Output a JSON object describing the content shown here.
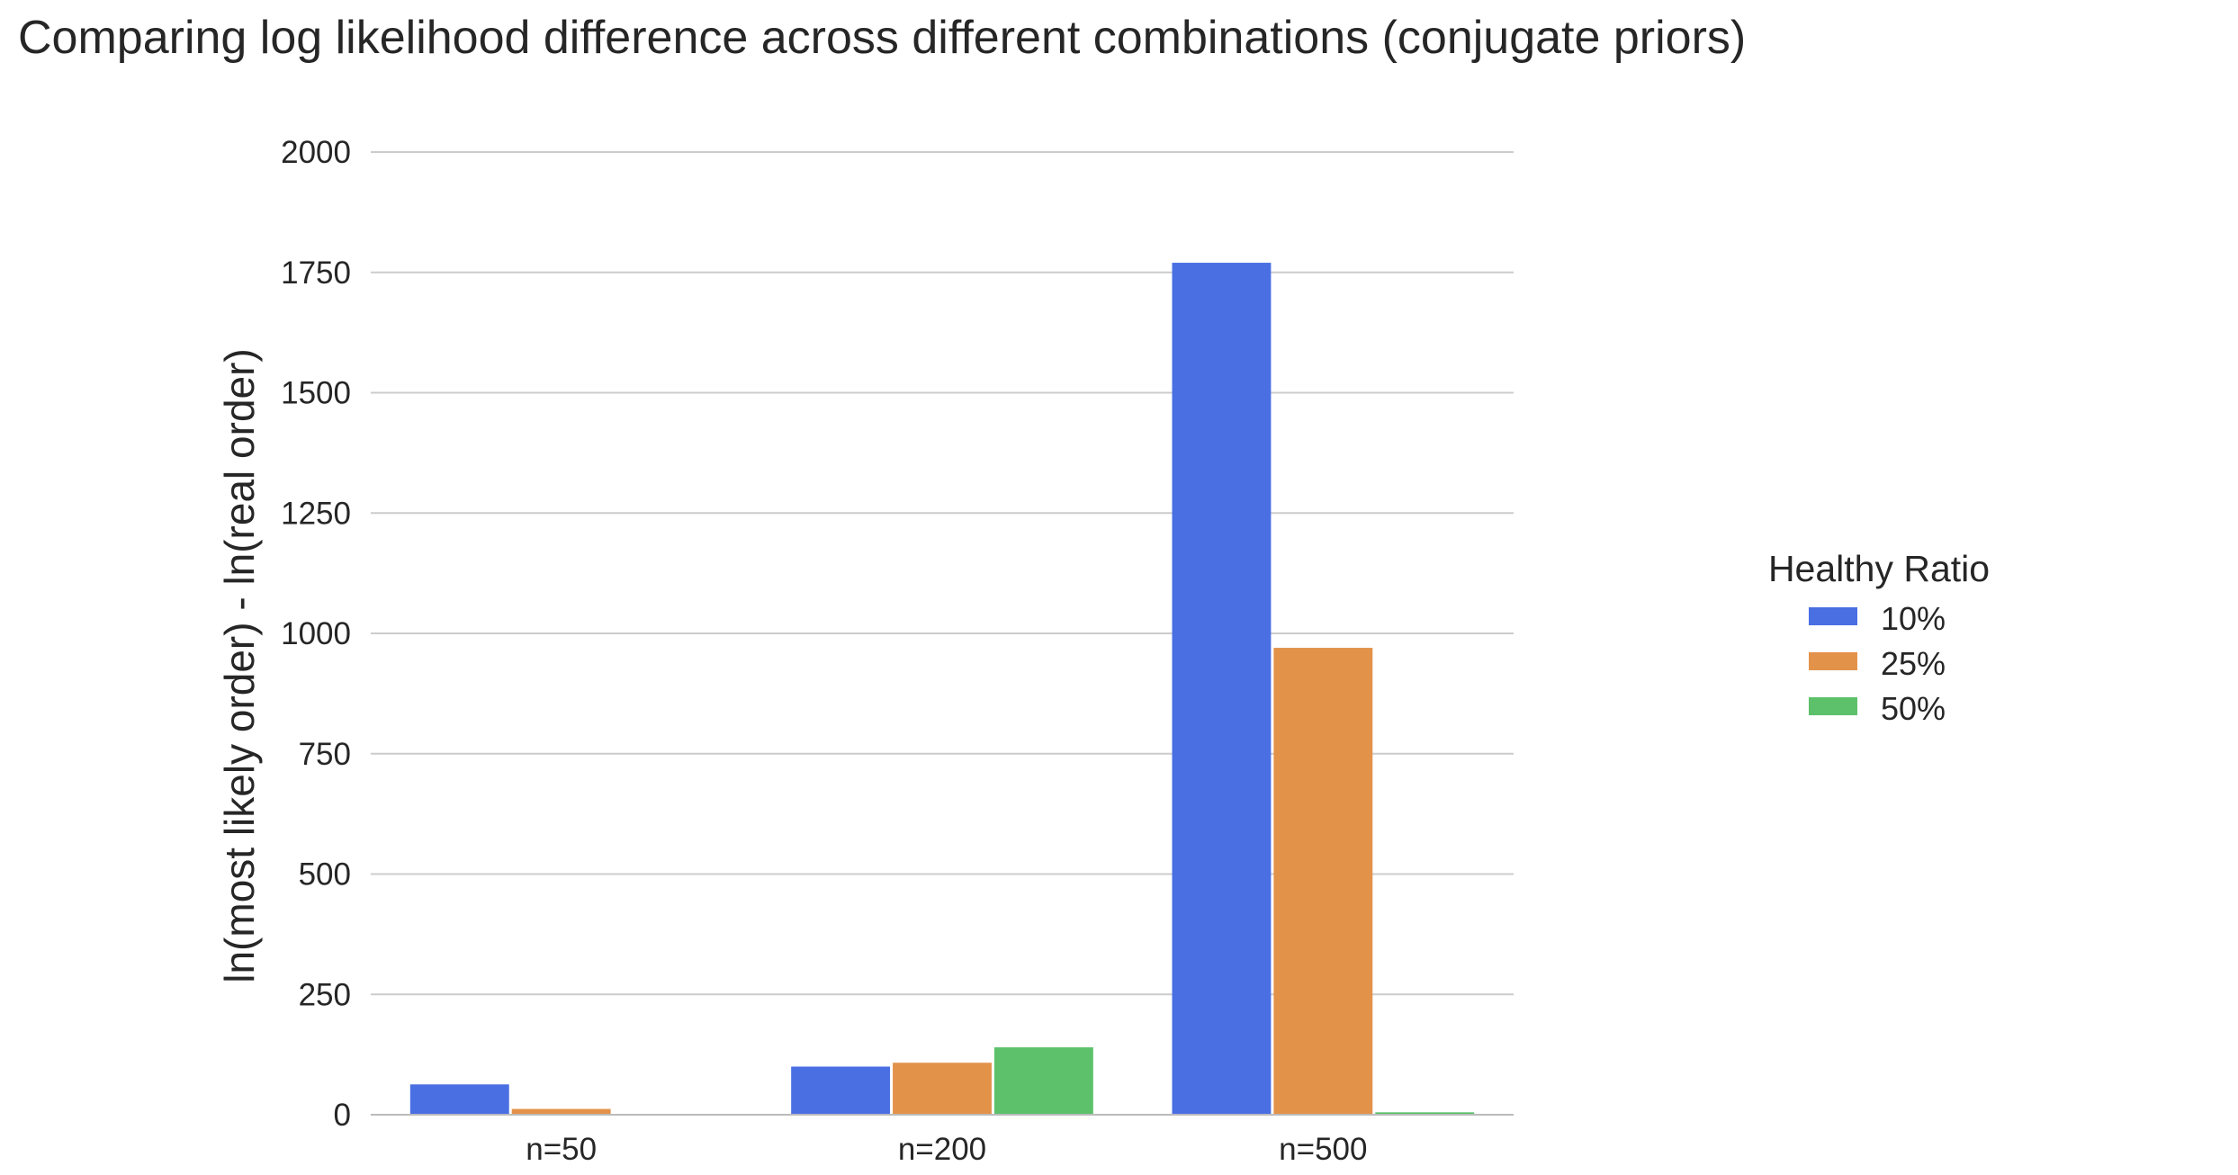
{
  "chart_data": {
    "type": "bar",
    "title": "Comparing log likelihood difference across different combinations (conjugate priors)",
    "xlabel": "",
    "ylabel": "ln(most likely order) - ln(real order)",
    "ylim": [
      0,
      2000
    ],
    "yticks": [
      0,
      250,
      500,
      750,
      1000,
      1250,
      1500,
      1750,
      2000
    ],
    "categories": [
      "n=50",
      "n=200",
      "n=500"
    ],
    "legend_title": "Healthy Ratio",
    "legend_position": "right",
    "grid": true,
    "series": [
      {
        "name": "10%",
        "color": "#4a6fe3",
        "values": [
          63,
          100,
          1770
        ]
      },
      {
        "name": "25%",
        "color": "#e3924a",
        "values": [
          12,
          108,
          970
        ]
      },
      {
        "name": "50%",
        "color": "#5cc16a",
        "values": [
          0,
          140,
          5
        ]
      }
    ]
  }
}
